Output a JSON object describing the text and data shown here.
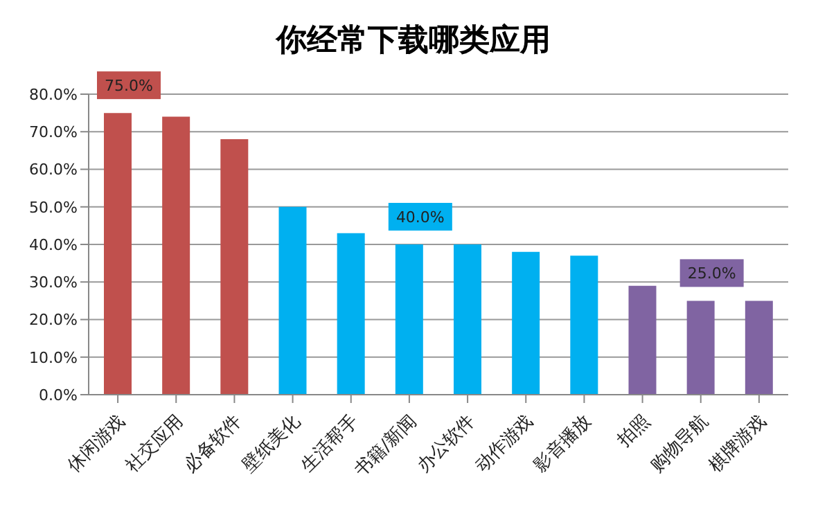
{
  "chart_data": {
    "type": "bar",
    "title": "你经常下载哪类应用",
    "categories": [
      "休闲游戏",
      "社交应用",
      "必备软件",
      "壁纸美化",
      "生活帮手",
      "书籍/新闻",
      "办公软件",
      "动作游戏",
      "影音播放",
      "拍照",
      "购物导航",
      "棋牌游戏"
    ],
    "values": [
      75,
      74,
      68,
      50,
      43,
      40,
      40,
      38,
      37,
      29,
      25,
      25
    ],
    "colors": [
      "#c0504d",
      "#c0504d",
      "#c0504d",
      "#00b0f0",
      "#00b0f0",
      "#00b0f0",
      "#00b0f0",
      "#00b0f0",
      "#00b0f0",
      "#8064a2",
      "#8064a2",
      "#8064a2"
    ],
    "value_labels": [
      "75.0%",
      null,
      null,
      null,
      null,
      "40.0%",
      null,
      null,
      null,
      null,
      "25.0%",
      null
    ],
    "ylim": [
      0,
      80
    ],
    "yticks": [
      {
        "value": 0,
        "label": "0.0%"
      },
      {
        "value": 10,
        "label": "10.0%"
      },
      {
        "value": 20,
        "label": "20.0%"
      },
      {
        "value": 30,
        "label": "30.0%"
      },
      {
        "value": 40,
        "label": "40.0%"
      },
      {
        "value": 50,
        "label": "50.0%"
      },
      {
        "value": 60,
        "label": "60.0%"
      },
      {
        "value": 70,
        "label": "70.0%"
      },
      {
        "value": 80,
        "label": "80.0%"
      }
    ],
    "grid": "y"
  }
}
